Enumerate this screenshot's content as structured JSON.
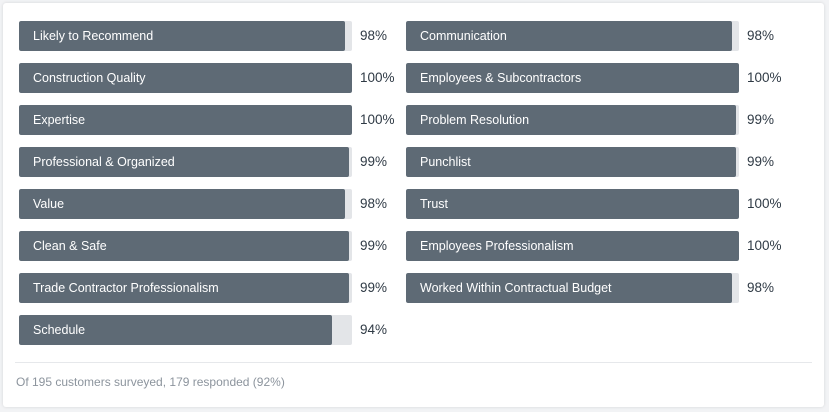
{
  "accent": "#5e6a75",
  "track_color": "#e3e5e8",
  "left_column": [
    {
      "label": "Likely to Recommend",
      "value": "98%",
      "percent": 98
    },
    {
      "label": "Construction Quality",
      "value": "100%",
      "percent": 100
    },
    {
      "label": "Expertise",
      "value": "100%",
      "percent": 100
    },
    {
      "label": "Professional & Organized",
      "value": "99%",
      "percent": 99
    },
    {
      "label": "Value",
      "value": "98%",
      "percent": 98
    },
    {
      "label": "Clean & Safe",
      "value": "99%",
      "percent": 99
    },
    {
      "label": "Trade Contractor Professionalism",
      "value": "99%",
      "percent": 99
    },
    {
      "label": "Schedule",
      "value": "94%",
      "percent": 94
    }
  ],
  "right_column": [
    {
      "label": "Communication",
      "value": "98%",
      "percent": 98
    },
    {
      "label": "Employees & Subcontractors",
      "value": "100%",
      "percent": 100
    },
    {
      "label": "Problem Resolution",
      "value": "99%",
      "percent": 99
    },
    {
      "label": "Punchlist",
      "value": "99%",
      "percent": 99
    },
    {
      "label": "Trust",
      "value": "100%",
      "percent": 100
    },
    {
      "label": "Employees Professionalism",
      "value": "100%",
      "percent": 100
    },
    {
      "label": "Worked Within Contractual Budget",
      "value": "98%",
      "percent": 98
    }
  ],
  "footer": {
    "text": "Of 195 customers surveyed, 179 responded (92%)"
  }
}
